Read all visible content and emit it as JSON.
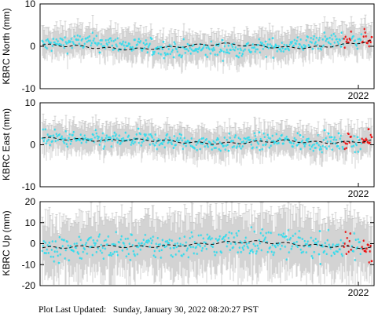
{
  "footer": {
    "label": "Plot Last Updated:",
    "timestamp": "Sunday, January 30, 2022 08:20:27 PST"
  },
  "colors": {
    "points": "#33ddee",
    "recent_points": "#ee1111",
    "error_bars": "#c8c8c8",
    "model": "#000000"
  },
  "chart_data": [
    {
      "type": "scatter",
      "ylabel": "KBRC North (mm)",
      "ylim": [
        -10,
        10
      ],
      "yticks": [
        -10,
        0,
        10
      ],
      "xtick_labels": [
        "2022"
      ],
      "points_approx": [
        {
          "segment": "early",
          "y": 2
        },
        {
          "segment": "middle",
          "y": 0
        },
        {
          "segment": "late",
          "y": -1
        },
        {
          "segment": "recent",
          "y": 1
        }
      ],
      "model_curve": [
        0.3,
        0.1,
        -0.4,
        -0.7,
        -0.4,
        0.2,
        0.6,
        0.2,
        -0.3,
        -0.3,
        0.3,
        1.3
      ]
    },
    {
      "type": "scatter",
      "ylabel": "KBRC East (mm)",
      "ylim": [
        -10,
        10
      ],
      "yticks": [
        -10,
        0,
        10
      ],
      "xtick_labels": [
        "2022"
      ],
      "points_approx": [
        {
          "segment": "early",
          "y": 1
        },
        {
          "segment": "middle",
          "y": -1
        },
        {
          "segment": "late",
          "y": 0
        },
        {
          "segment": "recent",
          "y": 2
        }
      ],
      "model_curve": [
        1.6,
        1.3,
        1.0,
        1.2,
        1.0,
        0.5,
        0.3,
        0.6,
        1.0,
        0.6,
        0.5,
        1.0
      ]
    },
    {
      "type": "scatter",
      "ylabel": "KBRC Up (mm)",
      "ylim": [
        -20,
        20
      ],
      "yticks": [
        -20,
        -10,
        0,
        10,
        20
      ],
      "xtick_labels": [
        "2022"
      ],
      "points_approx": [
        {
          "segment": "early",
          "y": -2
        },
        {
          "segment": "middle",
          "y": 1
        },
        {
          "segment": "late",
          "y": -1
        },
        {
          "segment": "recent",
          "y": -2
        }
      ],
      "model_curve": [
        -2.0,
        -1.6,
        -1.2,
        -1.5,
        -1.2,
        -0.5,
        0.5,
        1.0,
        0.2,
        -0.8,
        -1.5,
        -2.0
      ]
    }
  ]
}
